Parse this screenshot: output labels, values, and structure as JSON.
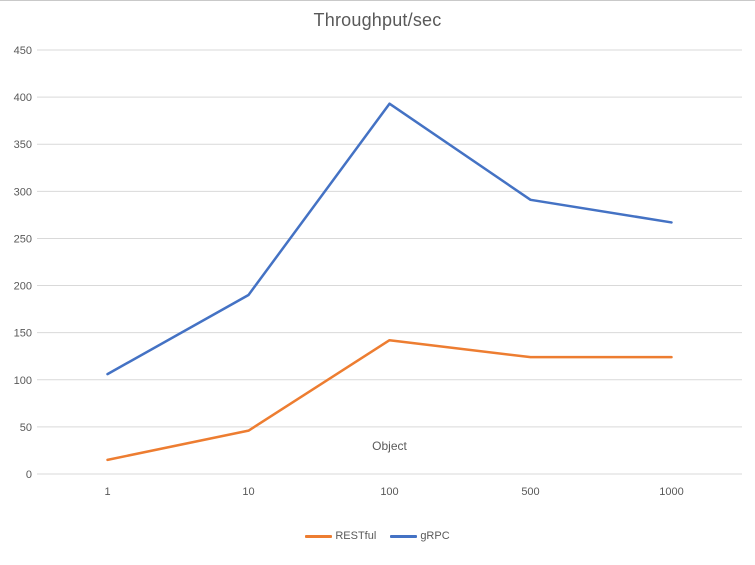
{
  "window": {
    "background": "#FFFFFF",
    "border_color": "#C9C9C9"
  },
  "chart_data": {
    "type": "line",
    "title": "Throughput/sec",
    "xlabel": "Object",
    "ylabel": "",
    "categories": [
      "1",
      "10",
      "100",
      "500",
      "1000"
    ],
    "series": [
      {
        "name": "RESTful",
        "color": "#ED7D31",
        "values": [
          15,
          46,
          142,
          124,
          124
        ]
      },
      {
        "name": "gRPC",
        "color": "#4472C4",
        "values": [
          106,
          190,
          393,
          291,
          267
        ]
      }
    ],
    "ylim": [
      0,
      450
    ],
    "y_ticks": [
      0,
      50,
      100,
      150,
      200,
      250,
      300,
      350,
      400,
      450
    ],
    "grid": true,
    "gridline_color": "#D9D9D9",
    "text_color": "#595959",
    "legend_position": "bottom"
  }
}
